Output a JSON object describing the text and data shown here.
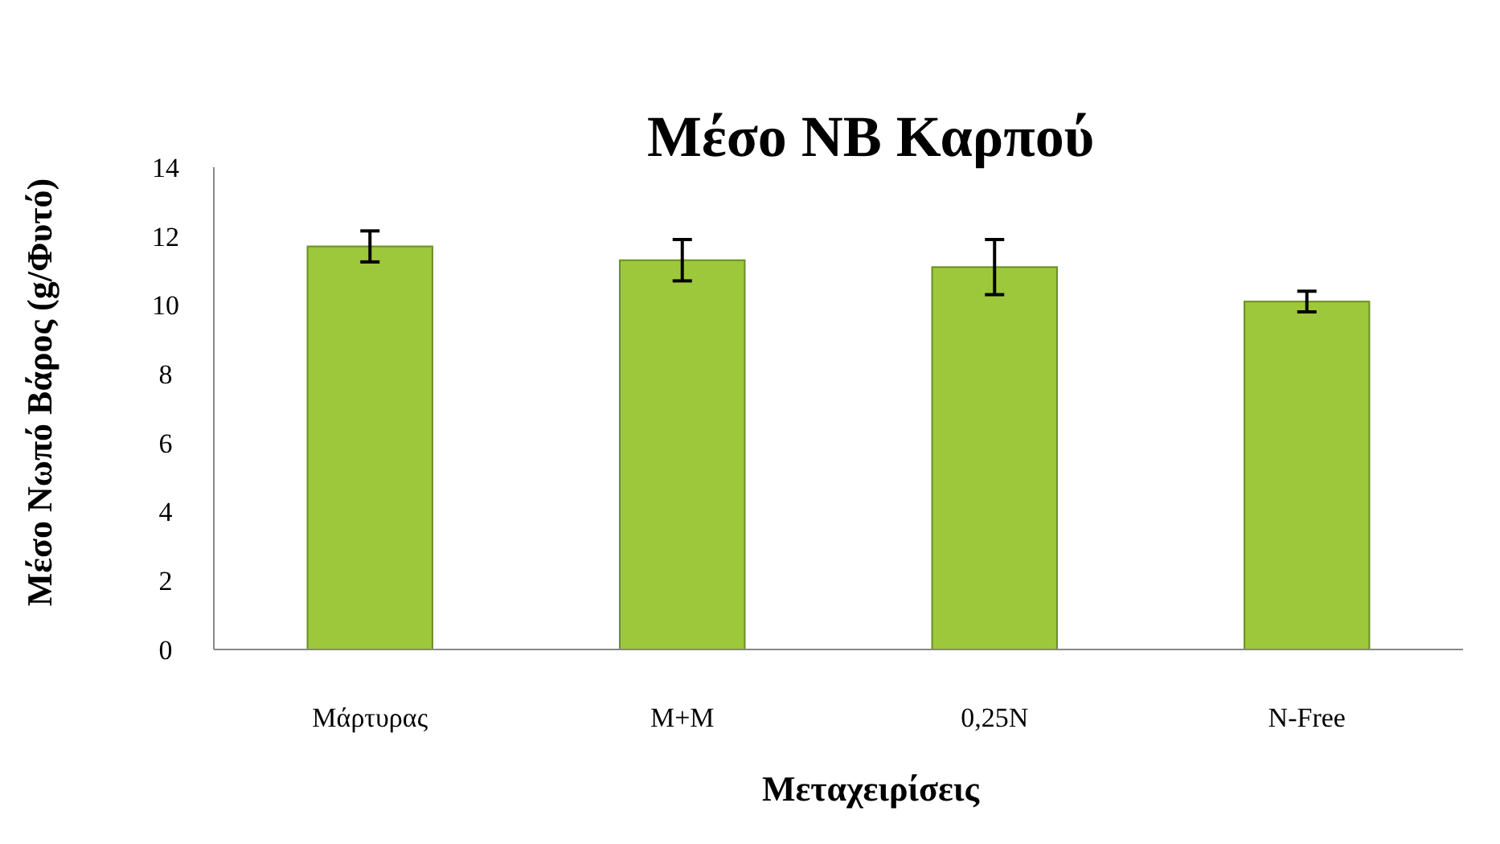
{
  "chart_data": {
    "type": "bar",
    "title": "Μέσο ΝΒ Καρπού",
    "xlabel": "Μεταχειρίσεις",
    "ylabel": "Μέσο Νωπό Βάρος (g/Φυτό)",
    "categories": [
      "Μάρτυρας",
      "M+M",
      "0,25N",
      "N-Free"
    ],
    "values": [
      11.7,
      11.3,
      11.1,
      10.1
    ],
    "errors": [
      0.45,
      0.6,
      0.8,
      0.3
    ],
    "color": "#9dc83c",
    "ylim": [
      0,
      14
    ],
    "yticks": [
      0,
      2,
      4,
      6,
      8,
      10,
      12,
      14
    ],
    "grid": false
  }
}
